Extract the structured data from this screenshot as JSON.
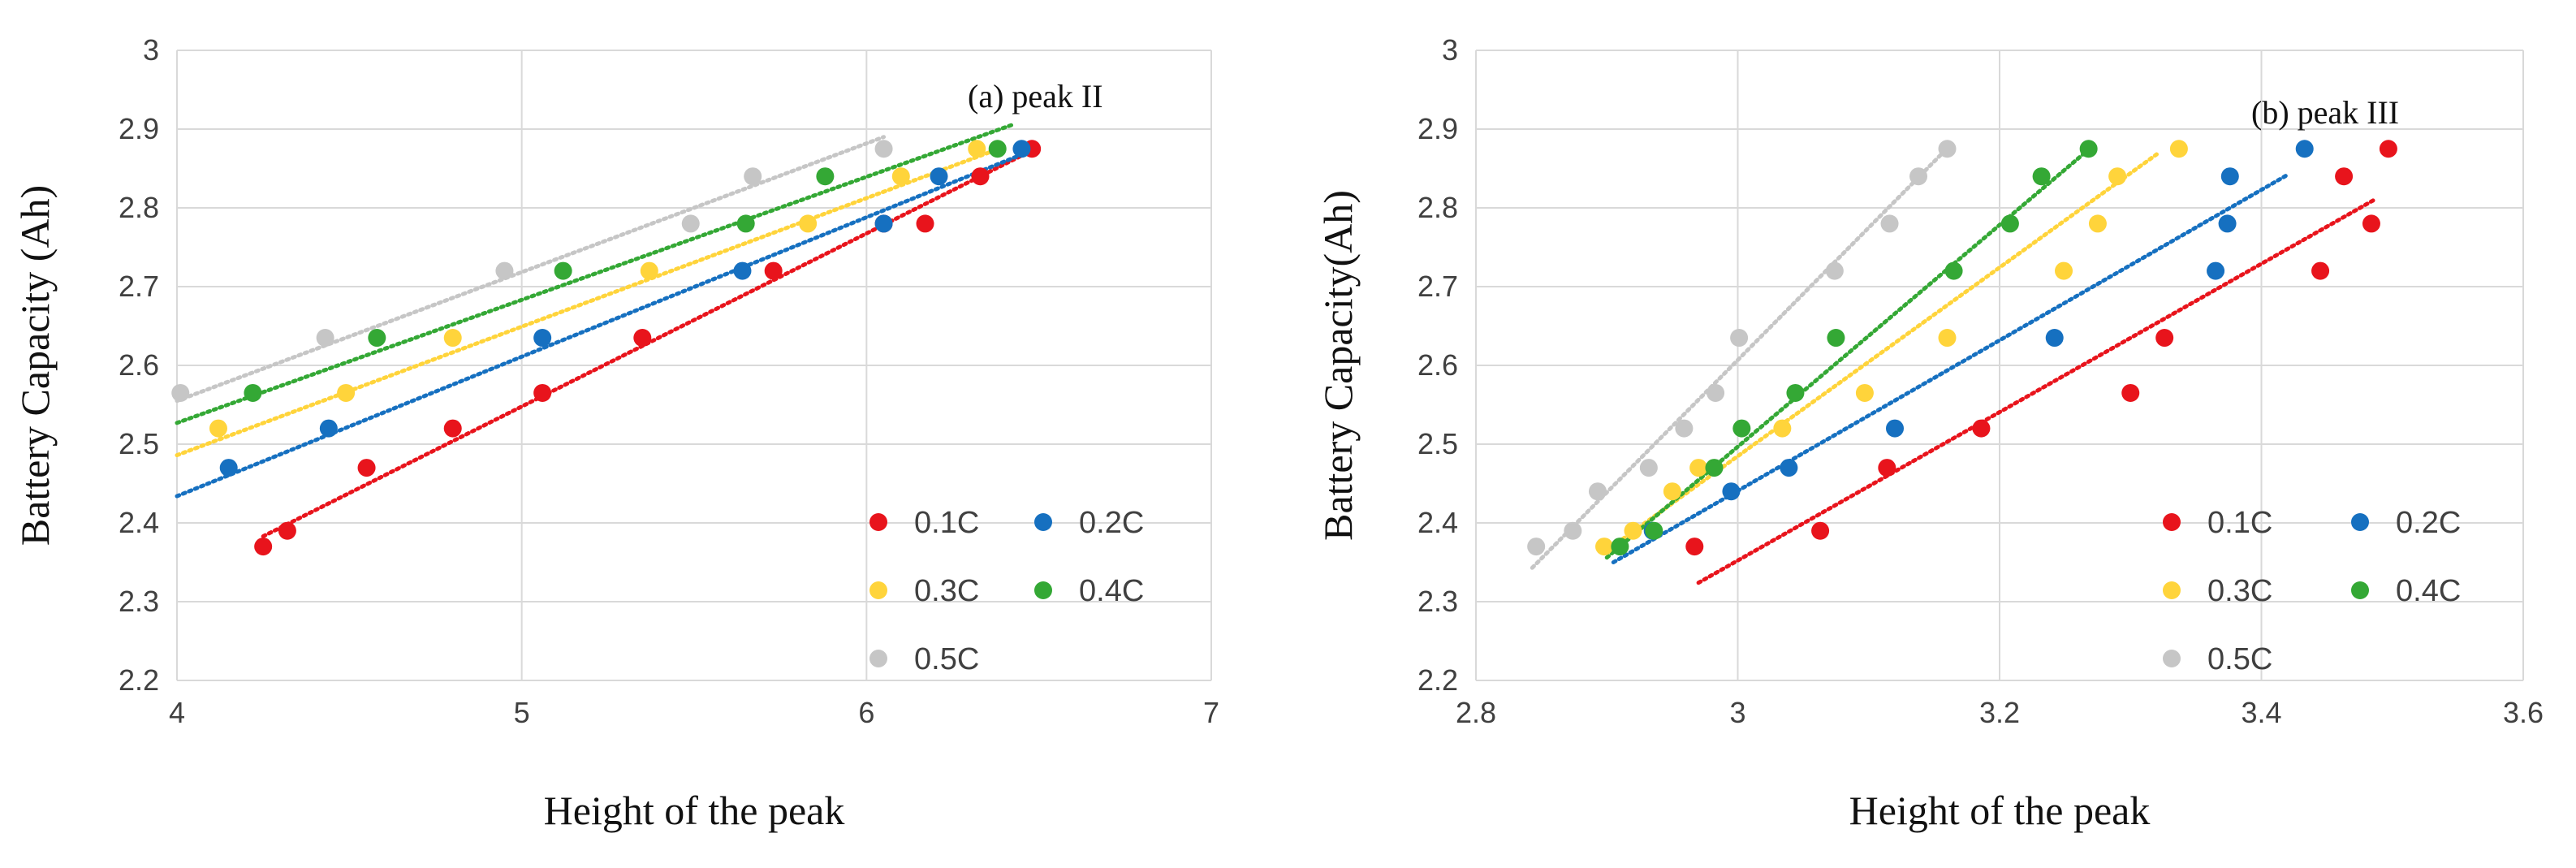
{
  "chart_data": [
    {
      "type": "scatter",
      "panel_label": "(a) peak II",
      "xlabel": "Height of the peak",
      "ylabel": "Battery Capacity (Ah)",
      "xlim": [
        4,
        7
      ],
      "ylim": [
        2.2,
        3.0
      ],
      "xticks": [
        "4",
        "5",
        "6",
        "7"
      ],
      "yticks": [
        "2.2",
        "2.3",
        "2.4",
        "2.5",
        "2.6",
        "2.7",
        "2.8",
        "2.9",
        "3"
      ],
      "legend_position": "bottom-right",
      "series": [
        {
          "name": "0.1C",
          "color": "#e8141c",
          "x": [
            4.25,
            4.32,
            4.55,
            4.8,
            5.06,
            5.35,
            5.73,
            6.05,
            6.17,
            6.33,
            6.48
          ],
          "y": [
            2.37,
            2.39,
            2.47,
            2.52,
            2.565,
            2.635,
            2.72,
            2.78,
            2.78,
            2.84,
            2.875
          ],
          "trend": [
            [
              4.25,
              2.383
            ],
            [
              6.48,
              2.873
            ]
          ]
        },
        {
          "name": "0.2C",
          "color": "#1670c0",
          "x": [
            4.15,
            4.44,
            5.06,
            5.64,
            6.05,
            6.21,
            6.45
          ],
          "y": [
            2.47,
            2.52,
            2.635,
            2.72,
            2.78,
            2.84,
            2.875
          ],
          "trend": [
            [
              4.0,
              2.434
            ],
            [
              6.48,
              2.873
            ]
          ]
        },
        {
          "name": "0.3C",
          "color": "#ffd43b",
          "x": [
            4.12,
            4.49,
            4.8,
            5.37,
            5.83,
            6.1,
            6.32
          ],
          "y": [
            2.52,
            2.565,
            2.635,
            2.72,
            2.78,
            2.84,
            2.875
          ],
          "trend": [
            [
              4.0,
              2.486
            ],
            [
              6.39,
              2.876
            ]
          ]
        },
        {
          "name": "0.4C",
          "color": "#34a835",
          "x": [
            4.22,
            4.58,
            5.12,
            5.65,
            5.88,
            6.38
          ],
          "y": [
            2.565,
            2.635,
            2.72,
            2.78,
            2.84,
            2.875
          ],
          "trend": [
            [
              4.0,
              2.527
            ],
            [
              6.42,
              2.905
            ]
          ]
        },
        {
          "name": "0.5C",
          "color": "#c6c6c6",
          "x": [
            4.01,
            4.43,
            4.95,
            5.49,
            5.67,
            6.05
          ],
          "y": [
            2.565,
            2.635,
            2.72,
            2.78,
            2.84,
            2.875
          ],
          "trend": [
            [
              4.0,
              2.555
            ],
            [
              6.05,
              2.89
            ]
          ]
        }
      ]
    },
    {
      "type": "scatter",
      "panel_label": "(b) peak III",
      "xlabel": "Height of the peak",
      "ylabel": "Battery Capacity(Ah)",
      "xlim": [
        2.8,
        3.6
      ],
      "ylim": [
        2.2,
        3.0
      ],
      "xticks": [
        "2.8",
        "3",
        "3.2",
        "3.4",
        "3.6"
      ],
      "yticks": [
        "2.2",
        "2.3",
        "2.4",
        "2.5",
        "2.6",
        "2.7",
        "2.8",
        "2.9",
        "3"
      ],
      "legend_position": "bottom-right",
      "series": [
        {
          "name": "0.1C",
          "color": "#e8141c",
          "x": [
            2.967,
            3.063,
            3.114,
            3.186,
            3.3,
            3.326,
            3.445,
            3.484,
            3.463,
            3.497
          ],
          "y": [
            2.37,
            2.39,
            2.47,
            2.52,
            2.565,
            2.635,
            2.72,
            2.78,
            2.84,
            2.875
          ],
          "trend": [
            [
              2.97,
              2.324
            ],
            [
              3.487,
              2.811
            ]
          ]
        },
        {
          "name": "0.2C",
          "color": "#1670c0",
          "x": [
            2.935,
            2.995,
            3.039,
            3.12,
            3.242,
            3.365,
            3.374,
            3.376,
            3.433
          ],
          "y": [
            2.39,
            2.44,
            2.47,
            2.52,
            2.635,
            2.72,
            2.78,
            2.84,
            2.875
          ],
          "trend": [
            [
              2.905,
              2.35
            ],
            [
              3.42,
              2.842
            ]
          ]
        },
        {
          "name": "0.3C",
          "color": "#ffd43b",
          "x": [
            2.898,
            2.92,
            2.95,
            2.97,
            3.034,
            3.097,
            3.16,
            3.249,
            3.275,
            3.29,
            3.337
          ],
          "y": [
            2.37,
            2.39,
            2.44,
            2.47,
            2.52,
            2.565,
            2.635,
            2.72,
            2.78,
            2.84,
            2.875
          ],
          "trend": [
            [
              2.9,
              2.365
            ],
            [
              3.32,
              2.868
            ]
          ]
        },
        {
          "name": "0.4C",
          "color": "#34a835",
          "x": [
            2.91,
            2.936,
            2.982,
            3.003,
            3.044,
            3.075,
            3.165,
            3.208,
            3.232,
            3.268
          ],
          "y": [
            2.37,
            2.39,
            2.47,
            2.52,
            2.565,
            2.635,
            2.72,
            2.78,
            2.84,
            2.875
          ],
          "trend": [
            [
              2.9,
              2.356
            ],
            [
              3.268,
              2.874
            ]
          ]
        },
        {
          "name": "0.5C",
          "color": "#c6c6c6",
          "x": [
            2.846,
            2.874,
            2.893,
            2.932,
            2.959,
            2.983,
            3.001,
            3.074,
            3.116,
            3.138,
            3.16
          ],
          "y": [
            2.37,
            2.39,
            2.44,
            2.47,
            2.52,
            2.565,
            2.635,
            2.72,
            2.78,
            2.84,
            2.875
          ],
          "trend": [
            [
              2.843,
              2.343
            ],
            [
              3.162,
              2.879
            ]
          ]
        }
      ]
    }
  ]
}
